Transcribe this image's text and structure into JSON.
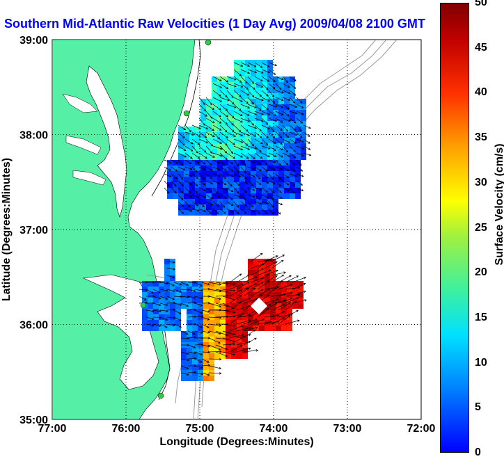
{
  "title": "Southern Mid-Atlantic Raw Velocities (1 Day Avg) 2009/04/08 2100 GMT",
  "map": {
    "x_axis_label": "Longitude (Degrees:Minutes)",
    "y_axis_label": "Latitude (Degrees:Minutes)",
    "x_ticks": [
      "77:00",
      "76:00",
      "75:00",
      "74:00",
      "73:00",
      "72:00"
    ],
    "y_ticks": [
      "39:00",
      "38:00",
      "37:00",
      "36:00",
      "35:00"
    ],
    "lon_range": [
      -77,
      -72
    ],
    "lat_range": [
      35,
      39
    ],
    "grid": "dotted",
    "land_color": "#55f0a5",
    "water_color": "#ffffff",
    "contour_color": "#999999"
  },
  "colorbar": {
    "label": "Surface Velocity (cm/s)",
    "ticks": [
      "50",
      "45",
      "40",
      "35",
      "30",
      "25",
      "20",
      "15",
      "10",
      "5",
      "0"
    ],
    "range": [
      0,
      50
    ],
    "colormap": "jet"
  }
}
